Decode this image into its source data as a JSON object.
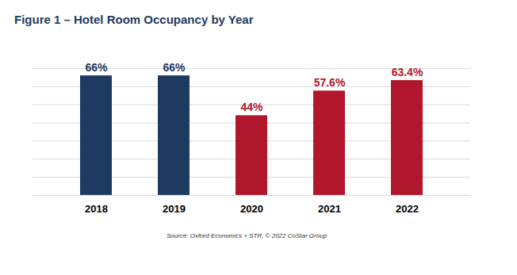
{
  "chart_data": {
    "type": "bar",
    "title": "Figure 1 – Hotel Room Occupancy by Year",
    "caption": "Source: Oxford Economics + STR, © 2022 CoStar Group",
    "categories": [
      "2018",
      "2019",
      "2020",
      "2021",
      "2022"
    ],
    "values": [
      66,
      66,
      44,
      57.6,
      63.4
    ],
    "value_labels": [
      "66%",
      "66%",
      "44%",
      "57.6%",
      "63.4%"
    ],
    "colors": [
      "#1f3a60",
      "#1f3a60",
      "#b0172d",
      "#b0172d",
      "#b0172d"
    ],
    "ylim": [
      0,
      70
    ],
    "yticks": [
      0,
      10,
      20,
      30,
      40,
      50,
      60,
      70
    ],
    "grid": true,
    "data_labels": true,
    "tick_labels": "x"
  }
}
